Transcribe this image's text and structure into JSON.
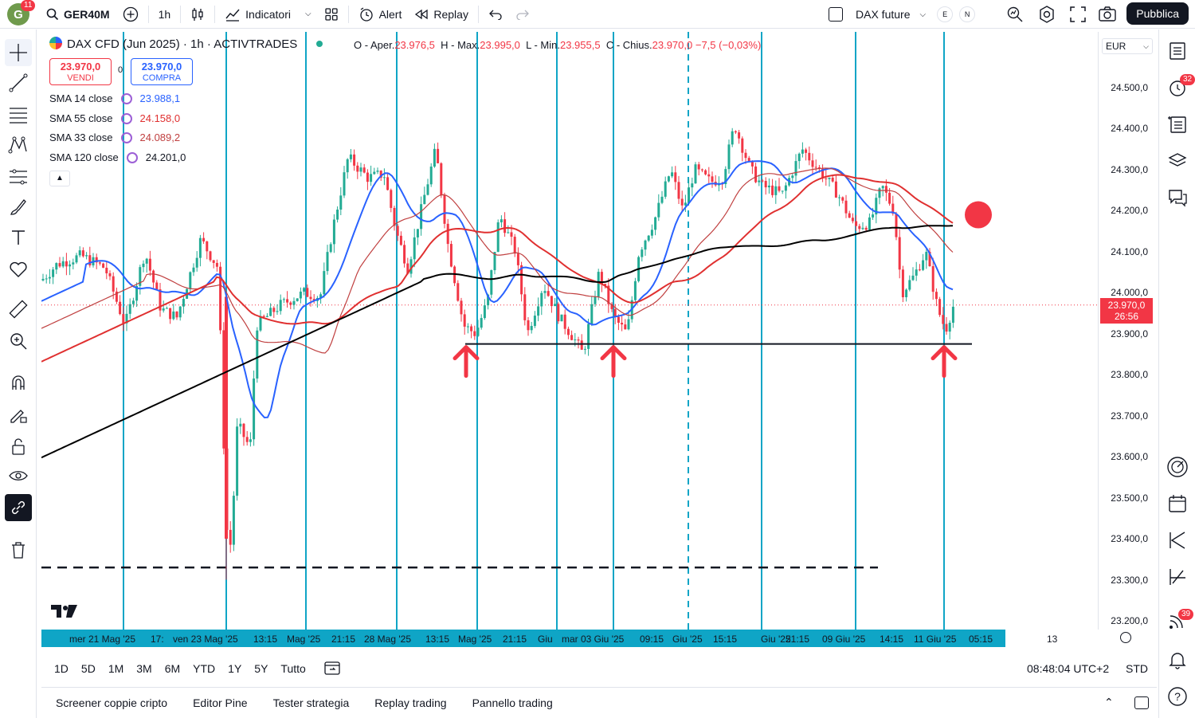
{
  "topbar": {
    "avatar_letter": "G",
    "avatar_badge": "11",
    "symbol": "GER40M",
    "interval": "1h",
    "indicators_label": "Indicatori",
    "alert_label": "Alert",
    "replay_label": "Replay",
    "compare_label": "DAX future",
    "e_label": "E",
    "n_label": "N",
    "publish_label": "Pubblica"
  },
  "legend": {
    "title": "DAX CFD (Jun 2025) · 1h · ACTIVTRADES",
    "o_label": "O - Aper.",
    "o_value": "23.976,5",
    "h_label": "H - Max.",
    "h_value": "23.995,0",
    "l_label": "L - Min.",
    "l_value": "23.955,5",
    "c_label": "C - Chius.",
    "c_value": "23.970,0",
    "change": "−7,5",
    "change_pct": "(−0,03%)",
    "sell_price": "23.970,0",
    "sell_label": "VENDI",
    "spread": "0",
    "buy_price": "23.970,0",
    "buy_label": "COMPRA"
  },
  "indicators": [
    {
      "name": "SMA 14 close",
      "value": "23.988,1",
      "color": "#2962ff"
    },
    {
      "name": "SMA 55 close",
      "value": "24.158,0",
      "color": "#e03030"
    },
    {
      "name": "SMA 33 close",
      "value": "24.089,2",
      "color": "#c04040"
    },
    {
      "name": "SMA 120 close",
      "value": "24.201,0",
      "color": "#000000"
    }
  ],
  "price_scale": {
    "currency": "EUR",
    "labels": [
      "24.500,0",
      "24.400,0",
      "24.300,0",
      "24.200,0",
      "24.100,0",
      "24.000,0",
      "23.900,0",
      "23.800,0",
      "23.700,0",
      "23.600,0",
      "23.500,0",
      "23.400,0",
      "23.300,0",
      "23.200,0"
    ],
    "current_price": "23.970,0",
    "countdown": "26:56"
  },
  "time_axis": {
    "labels": [
      "mer 21 Mag '25",
      "17:",
      "ven 23 Mag '25",
      "13:15",
      "Mag '25",
      "21:15",
      "28 Mag '25",
      "13:15",
      "Mag '25",
      "21:15",
      "Giu",
      "mar 03 Giu '25",
      "09:15",
      "Giu '25",
      "15:15",
      "Giu '25",
      "21:15",
      "09 Giu '25",
      "14:15",
      "11 Giu '25",
      "05:15"
    ],
    "extra": "13"
  },
  "range_bar": {
    "ranges": [
      "1D",
      "5D",
      "1M",
      "3M",
      "6M",
      "YTD",
      "1Y",
      "5Y",
      "Tutto"
    ],
    "clock": "08:48:04 UTC+2",
    "session": "STD"
  },
  "bottom_panel": {
    "tabs": [
      "Screener coppie cripto",
      "Editor Pine",
      "Tester strategia",
      "Replay trading",
      "Pannello trading"
    ]
  },
  "right_badges": {
    "alerts": "32",
    "notifications": "39"
  },
  "colors": {
    "accent": "#0fa5c6",
    "up": "#22ab94",
    "down": "#f23645",
    "vline": "#0fa5c6"
  }
}
